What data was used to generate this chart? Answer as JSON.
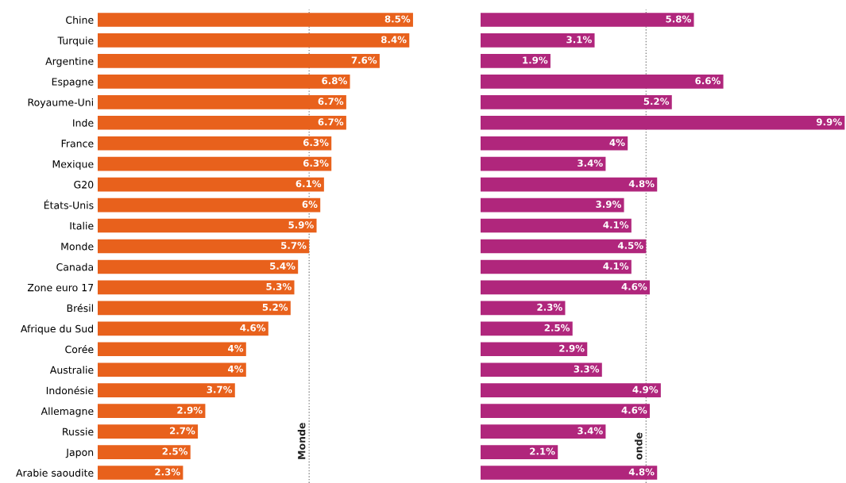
{
  "chart_data": [
    {
      "type": "bar",
      "orientation": "horizontal",
      "categories": [
        "Chine",
        "Turquie",
        "Argentine",
        "Espagne",
        "Royaume-Uni",
        "Inde",
        "France",
        "Mexique",
        "G20",
        "États-Unis",
        "Italie",
        "Monde",
        "Canada",
        "Zone euro 17",
        "Brésil",
        "Afrique du Sud",
        "Corée",
        "Australie",
        "Indonésie",
        "Allemagne",
        "Russie",
        "Japon",
        "Arabie saoudite"
      ],
      "values": [
        8.5,
        8.4,
        7.6,
        6.8,
        6.7,
        6.7,
        6.3,
        6.3,
        6.1,
        6,
        5.9,
        5.7,
        5.4,
        5.3,
        5.2,
        4.6,
        4,
        4,
        3.7,
        2.9,
        2.7,
        2.5,
        2.3
      ],
      "value_labels": [
        "8.5%",
        "8.4%",
        "7.6%",
        "6.8%",
        "6.7%",
        "6.7%",
        "6.3%",
        "6.3%",
        "6.1%",
        "6%",
        "5.9%",
        "5.7%",
        "5.4%",
        "5.3%",
        "5.2%",
        "4.6%",
        "4%",
        "4%",
        "3.7%",
        "2.9%",
        "2.7%",
        "2.5%",
        "2.3%"
      ],
      "color": "#e8611c",
      "tick_labels": "y",
      "ref_lines": [
        {
          "axis": "x",
          "value": 5.7,
          "label": "Monde",
          "color": "#888888",
          "line_style": "dotted"
        }
      ]
    },
    {
      "type": "bar",
      "orientation": "horizontal",
      "categories": [
        null,
        null,
        null,
        null,
        null,
        null,
        null,
        null,
        null,
        null,
        null,
        null,
        null,
        null,
        null,
        null,
        null,
        null,
        null,
        null,
        null,
        null,
        null
      ],
      "values": [
        5.8,
        3.1,
        1.9,
        6.6,
        5.2,
        9.9,
        4,
        3.4,
        4.8,
        3.9,
        4.1,
        4.5,
        4.1,
        4.6,
        2.3,
        2.5,
        2.9,
        3.3,
        4.9,
        4.6,
        3.4,
        2.1,
        4.8
      ],
      "value_labels": [
        "5.8%",
        "3.1%",
        "1.9%",
        "6.6%",
        "5.2%",
        "9.9%",
        "4%",
        "3.4%",
        "4.8%",
        "3.9%",
        "4.1%",
        "4.5%",
        "4.1%",
        "4.6%",
        "2.3%",
        "2.5%",
        "2.9%",
        "3.3%",
        "4.9%",
        "4.6%",
        "3.4%",
        "2.1%",
        "4.8%"
      ],
      "color": "#b0267c",
      "tick_labels": false,
      "ref_lines": [
        {
          "axis": "x",
          "value": 4.5,
          "label": "onde",
          "color": "#888888",
          "line_style": "dotted"
        }
      ]
    }
  ]
}
